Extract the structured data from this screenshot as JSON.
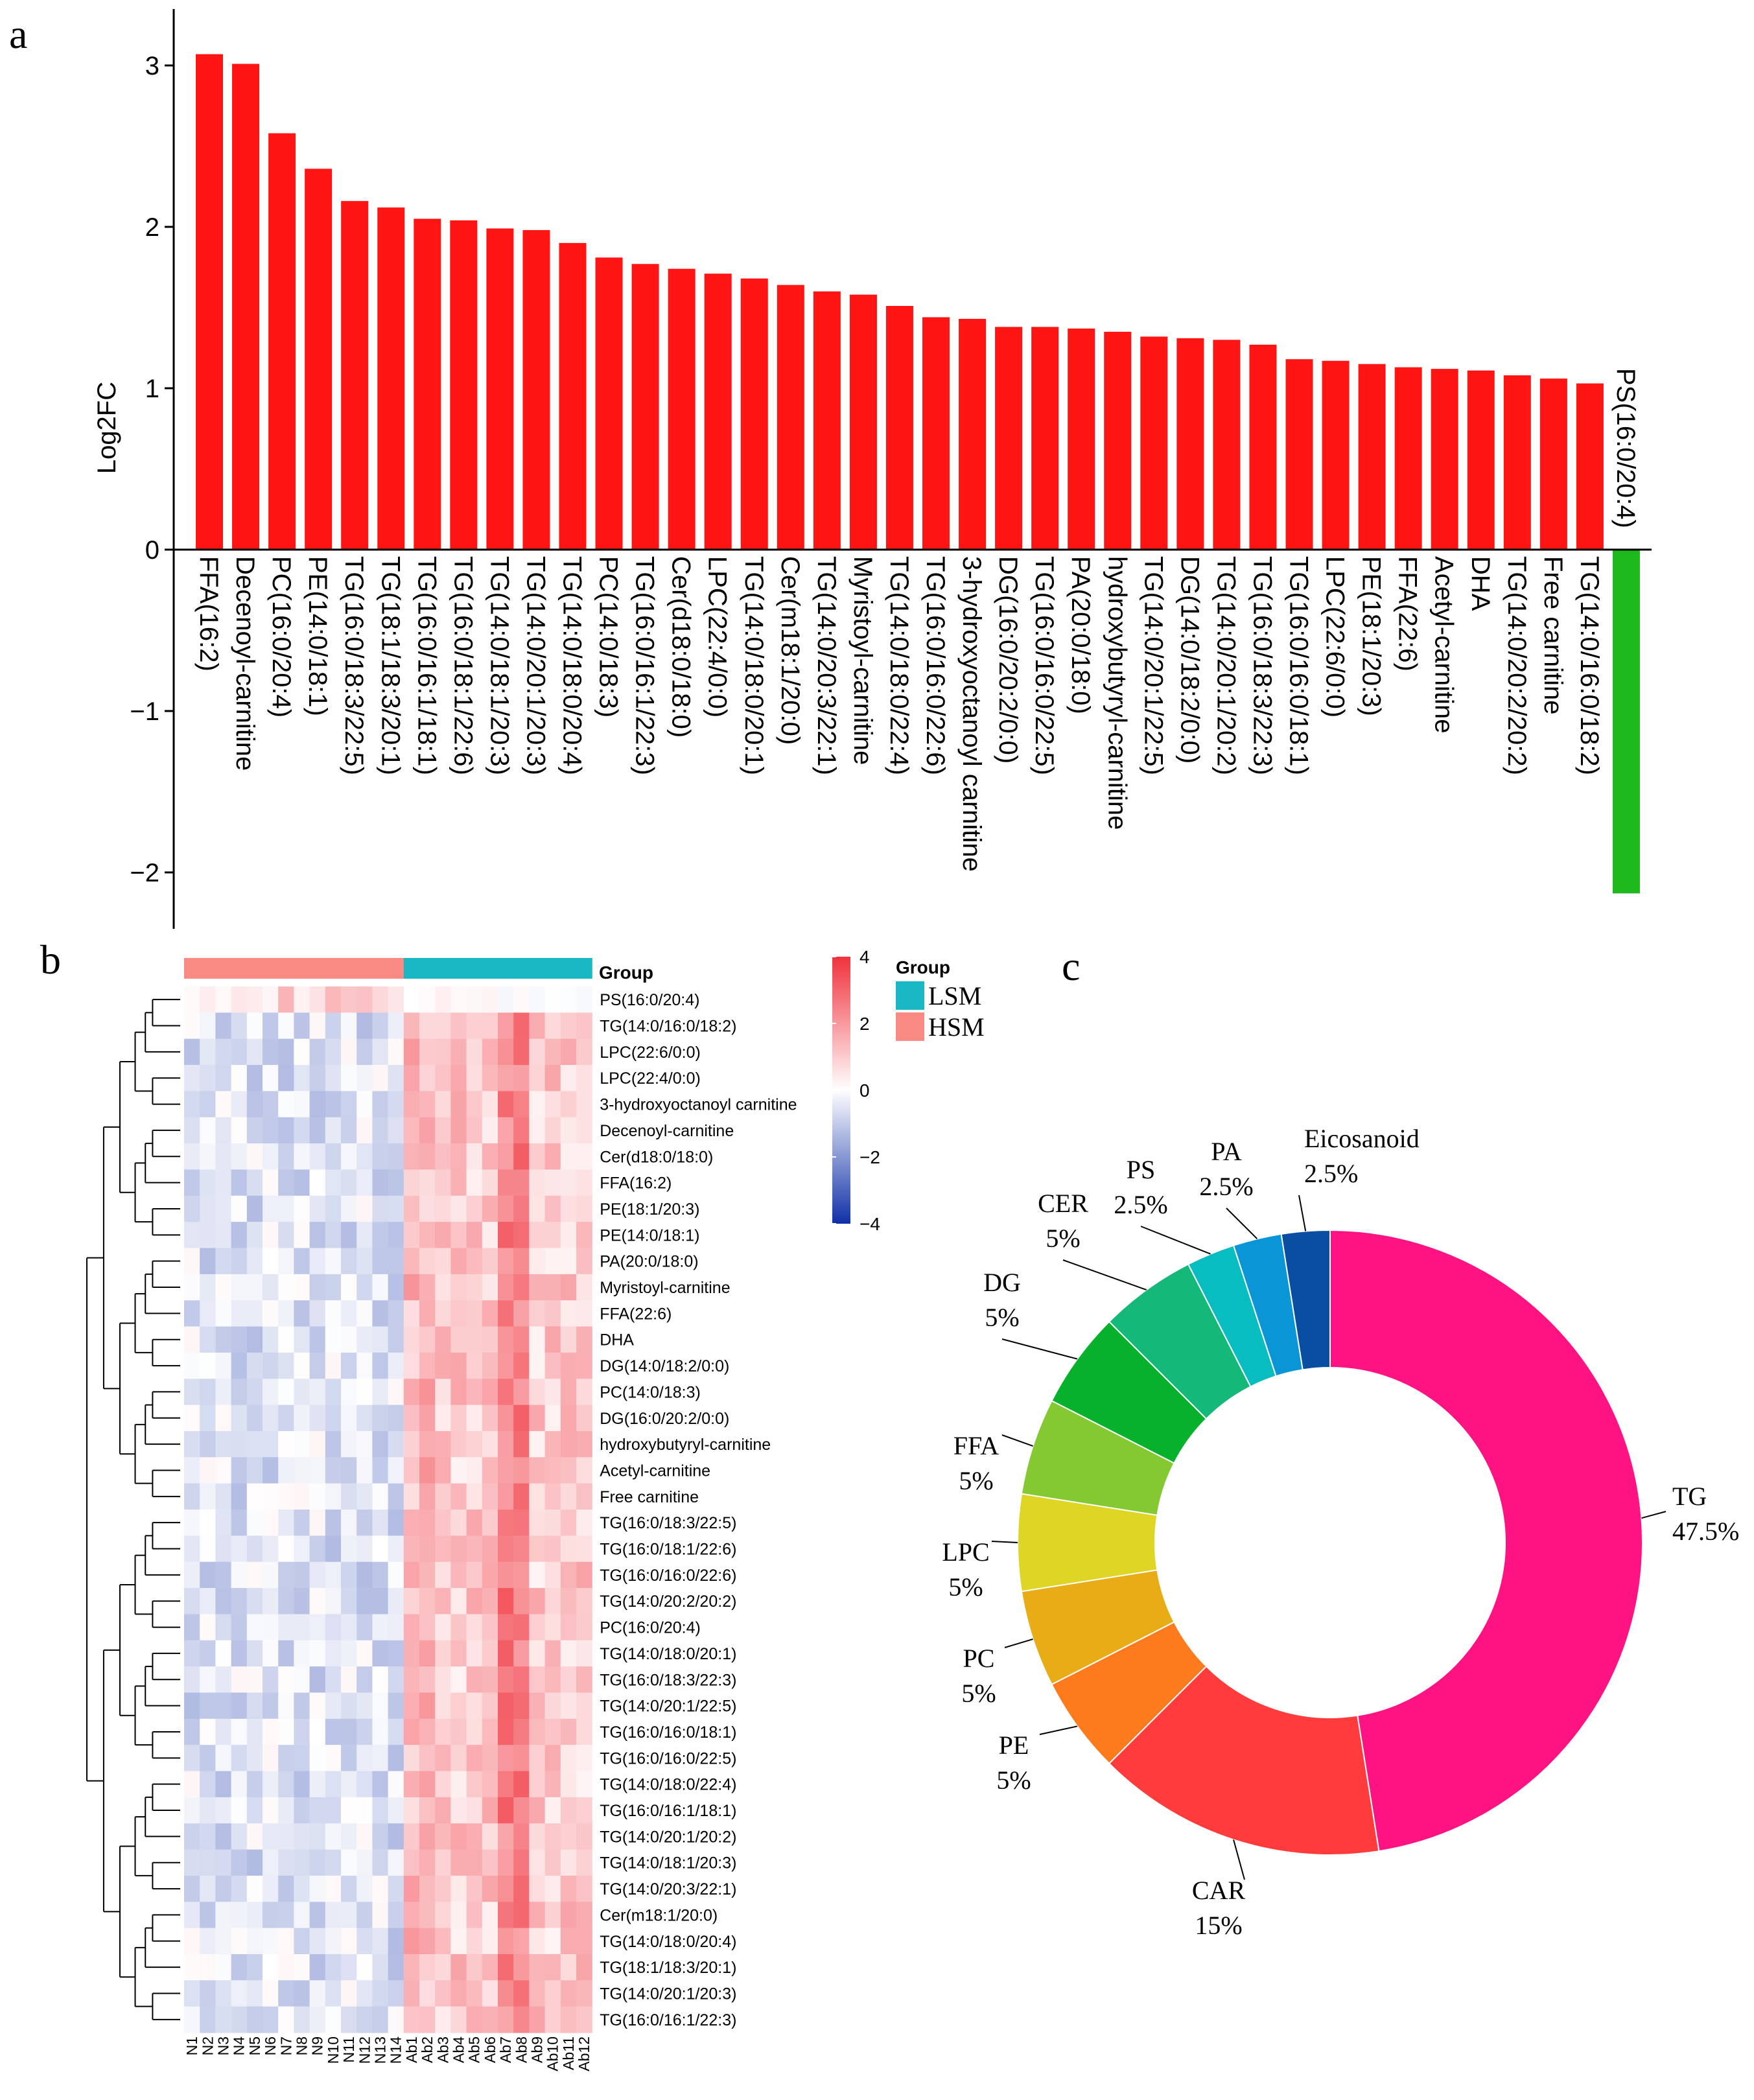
{
  "chart_data": [
    {
      "type": "bar",
      "panel_label": "a",
      "ylabel": "Log2FC",
      "ylim": [
        -2.35,
        3.35
      ],
      "yticks": [
        -2,
        -1,
        0,
        1,
        2,
        3
      ],
      "positive_color": "#ff1414",
      "negative_color": "#1db91d",
      "categories": [
        "FFA(16:2)",
        "Decenoyl-carnitine",
        "PC(16:0/20:4)",
        "PE(14:0/18:1)",
        "TG(16:0/18:3/22:5)",
        "TG(18:1/18:3/20:1)",
        "TG(16:0/16:1/18:1)",
        "TG(16:0/18:1/22:6)",
        "TG(14:0/18:1/20:3)",
        "TG(14:0/20:1/20:3)",
        "TG(14:0/18:0/20:4)",
        "PC(14:0/18:3)",
        "TG(16:0/16:1/22:3)",
        "Cer(d18:0/18:0)",
        "LPC(22:4/0:0)",
        "TG(14:0/18:0/20:1)",
        "Cer(m18:1/20:0)",
        "TG(14:0/20:3/22:1)",
        "Myristoyl-carnitine",
        "TG(14:0/18:0/22:4)",
        "TG(16:0/16:0/22:6)",
        "3-hydroxyoctanoyl carnitine",
        "DG(16:0/20:2/0:0)",
        "TG(16:0/16:0/22:5)",
        "PA(20:0/18:0)",
        "hydroxybutyryl-carnitine",
        "TG(14:0/20:1/22:5)",
        "DG(14:0/18:2/0:0)",
        "TG(14:0/20:1/20:2)",
        "TG(16:0/18:3/22:3)",
        "TG(16:0/16:0/18:1)",
        "LPC(22:6/0:0)",
        "PE(18:1/20:3)",
        "FFA(22:6)",
        "Acetyl-carnitine",
        "DHA",
        "TG(14:0/20:2/20:2)",
        "Free carnitine",
        "TG(14:0/16:0/18:2)",
        "PS(16:0/20:4)"
      ],
      "values": [
        3.07,
        3.01,
        2.58,
        2.36,
        2.16,
        2.12,
        2.05,
        2.04,
        1.99,
        1.98,
        1.9,
        1.81,
        1.77,
        1.74,
        1.71,
        1.68,
        1.64,
        1.6,
        1.58,
        1.51,
        1.44,
        1.43,
        1.38,
        1.38,
        1.37,
        1.35,
        1.32,
        1.31,
        1.3,
        1.27,
        1.18,
        1.17,
        1.15,
        1.13,
        1.12,
        1.11,
        1.08,
        1.06,
        1.03,
        -2.13
      ]
    },
    {
      "type": "heatmap",
      "panel_label": "b",
      "rows": [
        "PS(16:0/20:4)",
        "TG(14:0/16:0/18:2)",
        "LPC(22:6/0:0)",
        "LPC(22:4/0:0)",
        "3-hydroxyoctanoyl carnitine",
        "Decenoyl-carnitine",
        "Cer(d18:0/18:0)",
        "FFA(16:2)",
        "PE(18:1/20:3)",
        "PE(14:0/18:1)",
        "PA(20:0/18:0)",
        "Myristoyl-carnitine",
        "FFA(22:6)",
        "DHA",
        "DG(14:0/18:2/0:0)",
        "PC(14:0/18:3)",
        "DG(16:0/20:2/0:0)",
        "hydroxybutyryl-carnitine",
        "Acetyl-carnitine",
        "Free carnitine",
        "TG(16:0/18:3/22:5)",
        "TG(16:0/18:1/22:6)",
        "TG(16:0/16:0/22:6)",
        "TG(14:0/20:2/20:2)",
        "PC(16:0/20:4)",
        "TG(14:0/18:0/20:1)",
        "TG(16:0/18:3/22:3)",
        "TG(14:0/20:1/22:5)",
        "TG(16:0/16:0/18:1)",
        "TG(16:0/16:0/22:5)",
        "TG(14:0/18:0/22:4)",
        "TG(16:0/16:1/18:1)",
        "TG(14:0/20:1/20:2)",
        "TG(14:0/18:1/20:3)",
        "TG(14:0/20:3/22:1)",
        "Cer(m18:1/20:0)",
        "TG(14:0/18:0/20:4)",
        "TG(18:1/18:3/20:1)",
        "TG(14:0/20:1/20:3)",
        "TG(16:0/16:1/22:3)"
      ],
      "columns": [
        "N1",
        "N2",
        "N3",
        "N4",
        "N5",
        "N6",
        "N7",
        "N8",
        "N9",
        "N10",
        "N11",
        "N12",
        "N13",
        "N14",
        "Ab1",
        "Ab2",
        "Ab3",
        "Ab4",
        "Ab5",
        "Ab6",
        "Ab7",
        "Ab8",
        "Ab9",
        "Ab10",
        "Ab11",
        "Ab12"
      ],
      "group_title": "Group",
      "legend_title": "Group",
      "groups": [
        {
          "name": "LSM",
          "color": "#1ab8c4"
        },
        {
          "name": "HSM",
          "color": "#fa8a84"
        }
      ],
      "column_groups": [
        "HSM",
        "HSM",
        "HSM",
        "HSM",
        "HSM",
        "HSM",
        "HSM",
        "HSM",
        "HSM",
        "HSM",
        "HSM",
        "HSM",
        "HSM",
        "HSM",
        "LSM",
        "LSM",
        "LSM",
        "LSM",
        "LSM",
        "LSM",
        "LSM",
        "LSM",
        "LSM",
        "LSM",
        "LSM",
        "LSM"
      ],
      "colorbar_ticks": [
        4,
        2,
        0,
        -2,
        -4
      ],
      "color_range": [
        -4,
        4
      ],
      "colors": {
        "low": "#1030a8",
        "mid": "#ffffff",
        "high": "#f0323c"
      }
    },
    {
      "type": "pie",
      "panel_label": "c",
      "labels": [
        "TG",
        "CAR",
        "PE",
        "PC",
        "LPC",
        "FFA",
        "DG",
        "CER",
        "PS",
        "PA",
        "Eicosanoid"
      ],
      "percent_labels": [
        "47.5%",
        "15%",
        "5%",
        "5%",
        "5%",
        "5%",
        "5%",
        "5%",
        "2.5%",
        "2.5%",
        "2.5%"
      ],
      "values": [
        47.5,
        15,
        5,
        5,
        5,
        5,
        5,
        5,
        2.5,
        2.5,
        2.5
      ],
      "colors": [
        "#ff1281",
        "#ff3b3b",
        "#fd7a1d",
        "#e8ad16",
        "#dfd525",
        "#84c932",
        "#07b12c",
        "#14b97a",
        "#08bdbf",
        "#0a96d6",
        "#0a4ea3"
      ]
    }
  ]
}
